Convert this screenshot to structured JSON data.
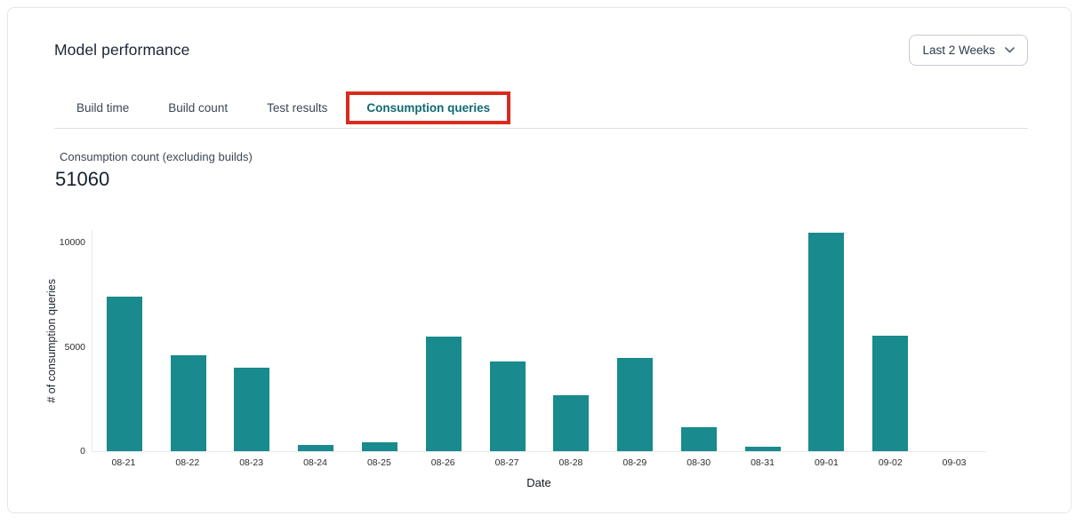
{
  "header": {
    "title": "Model performance",
    "range_selector": {
      "label": "Last 2 Weeks"
    }
  },
  "tabs": {
    "items": [
      {
        "label": "Build time",
        "active": false
      },
      {
        "label": "Build count",
        "active": false
      },
      {
        "label": "Test results",
        "active": false
      },
      {
        "label": "Consumption queries",
        "active": true,
        "annotated": true
      }
    ]
  },
  "metric": {
    "label": "Consumption count (excluding builds)",
    "value": "51060"
  },
  "chart_data": {
    "type": "bar",
    "title": "",
    "xlabel": "Date",
    "ylabel": "# of consumption queries",
    "categories": [
      "08-21",
      "08-22",
      "08-23",
      "08-24",
      "08-25",
      "08-26",
      "08-27",
      "08-28",
      "08-29",
      "08-30",
      "08-31",
      "09-01",
      "09-02",
      "09-03"
    ],
    "values": [
      7400,
      4600,
      4000,
      300,
      440,
      5500,
      4300,
      2700,
      4450,
      1150,
      220,
      10450,
      5550,
      0
    ],
    "yticks": [
      0,
      5000,
      10000
    ],
    "ylim": [
      0,
      10650
    ],
    "grid": false,
    "legend": "none",
    "bar_color": "#198a8d"
  },
  "colors": {
    "bar": "#198a8d",
    "active_tab_text": "#116a73",
    "annotation_red": "#d92b1c",
    "card_border": "#e4e6ea",
    "axis_line": "#e8eaee"
  }
}
